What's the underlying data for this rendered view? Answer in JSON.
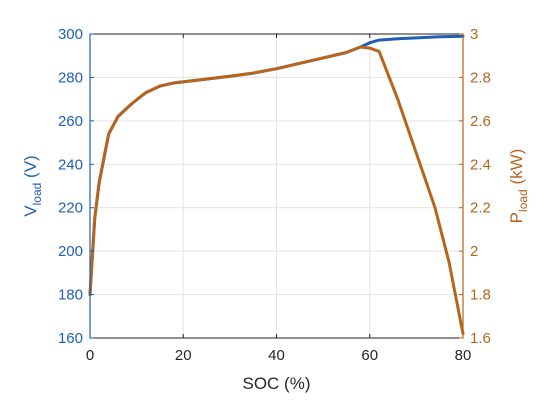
{
  "chart_data": {
    "type": "line",
    "title": "",
    "grid": true,
    "legend": "none",
    "xlabel": "SOC (%)",
    "xlim": [
      0,
      80
    ],
    "xticks": [
      "0",
      "20",
      "40",
      "60",
      "80"
    ],
    "y_left": {
      "label_main": "V",
      "label_sub": "load",
      "label_unit": " (V)",
      "lim": [
        160,
        300
      ],
      "ticks": [
        "160",
        "180",
        "200",
        "220",
        "240",
        "260",
        "280",
        "300"
      ],
      "color": "#1f5fb4"
    },
    "y_right": {
      "label_main": "P",
      "label_sub": "load",
      "label_unit": " (kW)",
      "lim": [
        1.6,
        3.0
      ],
      "ticks": [
        "1.6",
        "1.8",
        "2",
        "2.2",
        "2.4",
        "2.6",
        "2.8",
        "3"
      ],
      "color": "#b5651d"
    },
    "series": [
      {
        "axis": "left",
        "color": "#1f5fb4",
        "x": [
          0,
          1,
          2,
          4,
          6,
          9,
          12,
          15,
          18,
          22,
          26,
          30,
          35,
          40,
          45,
          50,
          55,
          58,
          60,
          62,
          66,
          70,
          75,
          80
        ],
        "y": [
          180,
          215,
          232,
          254,
          262,
          268,
          273,
          276,
          277.5,
          278.5,
          279.5,
          280.5,
          282,
          284,
          286.5,
          289,
          291.5,
          294,
          296,
          297.2,
          297.8,
          298.2,
          298.7,
          299
        ]
      },
      {
        "axis": "right",
        "color": "#b5651d",
        "x": [
          0,
          1,
          2,
          4,
          6,
          9,
          12,
          15,
          18,
          22,
          26,
          30,
          35,
          40,
          45,
          50,
          55,
          58,
          60,
          62,
          66,
          70,
          74,
          77,
          80
        ],
        "y": [
          1.8,
          2.15,
          2.32,
          2.54,
          2.62,
          2.68,
          2.73,
          2.76,
          2.775,
          2.785,
          2.795,
          2.805,
          2.82,
          2.84,
          2.865,
          2.89,
          2.915,
          2.94,
          2.935,
          2.92,
          2.7,
          2.45,
          2.2,
          1.95,
          1.62
        ]
      }
    ]
  }
}
